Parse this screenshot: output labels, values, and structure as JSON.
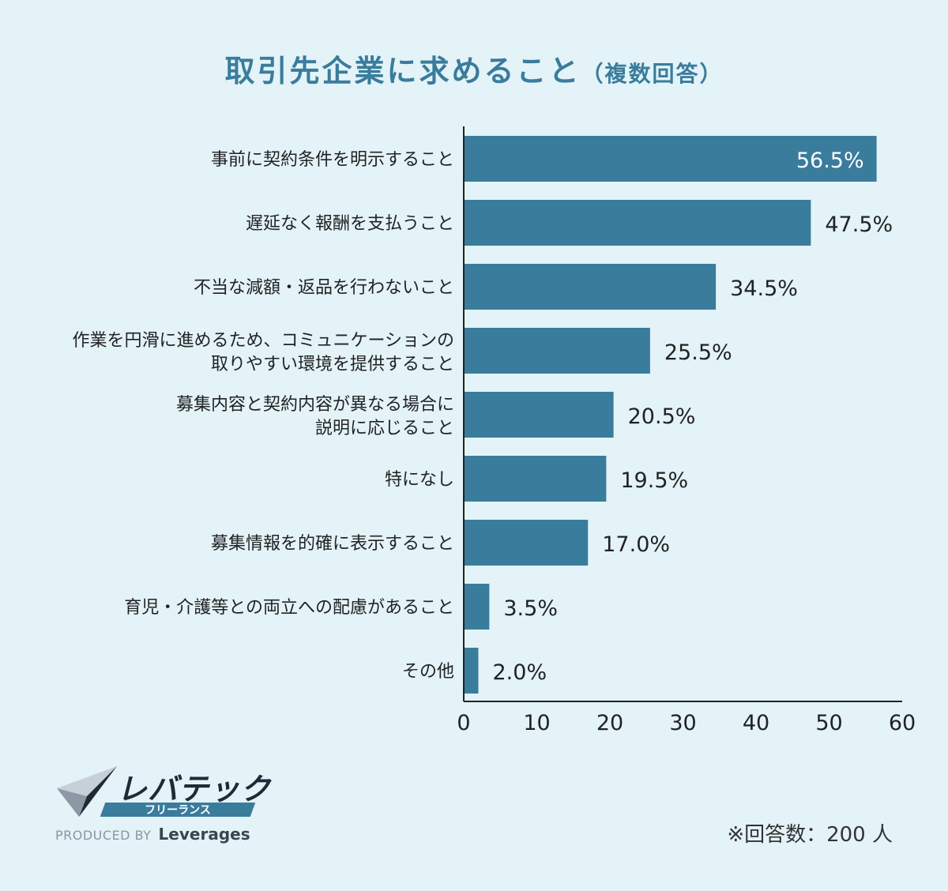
{
  "title": {
    "main": "取引先企業に求めること",
    "sub": "（複数回答）"
  },
  "colors": {
    "bar": "#3a7c9c",
    "background": "#e3f3f8",
    "title": "#3a7c9c",
    "axis": "#222222",
    "text": "#222222",
    "inside_label": "#ffffff"
  },
  "chart_data": {
    "type": "bar",
    "orientation": "horizontal",
    "categories": [
      [
        "事前に契約条件を明示すること"
      ],
      [
        "遅延なく報酬を支払うこと"
      ],
      [
        "不当な減額・返品を行わないこと"
      ],
      [
        "作業を円滑に進めるため、コミュニケーションの",
        "取りやすい環境を提供すること"
      ],
      [
        "募集内容と契約内容が異なる場合に",
        "説明に応じること"
      ],
      [
        "特になし"
      ],
      [
        "募集情報を的確に表示すること"
      ],
      [
        "育児・介護等との両立への配慮があること"
      ],
      [
        "その他"
      ]
    ],
    "values": [
      56.5,
      47.5,
      34.5,
      25.5,
      20.5,
      19.5,
      17.0,
      3.5,
      2.0
    ],
    "value_labels": [
      "56.5%",
      "47.5%",
      "34.5%",
      "25.5%",
      "20.5%",
      "19.5%",
      "17.0%",
      "3.5%",
      "2.0%"
    ],
    "xlim": [
      0,
      60
    ],
    "xticks": [
      0,
      10,
      20,
      30,
      40,
      50,
      60
    ],
    "grid": false,
    "title": "取引先企業に求めること（複数回答）"
  },
  "footnote": "※回答数：200 人",
  "logo": {
    "name": "レバテック",
    "band": "フリーランス",
    "produced_by": "PRODUCED BY",
    "company": "Leverages"
  }
}
